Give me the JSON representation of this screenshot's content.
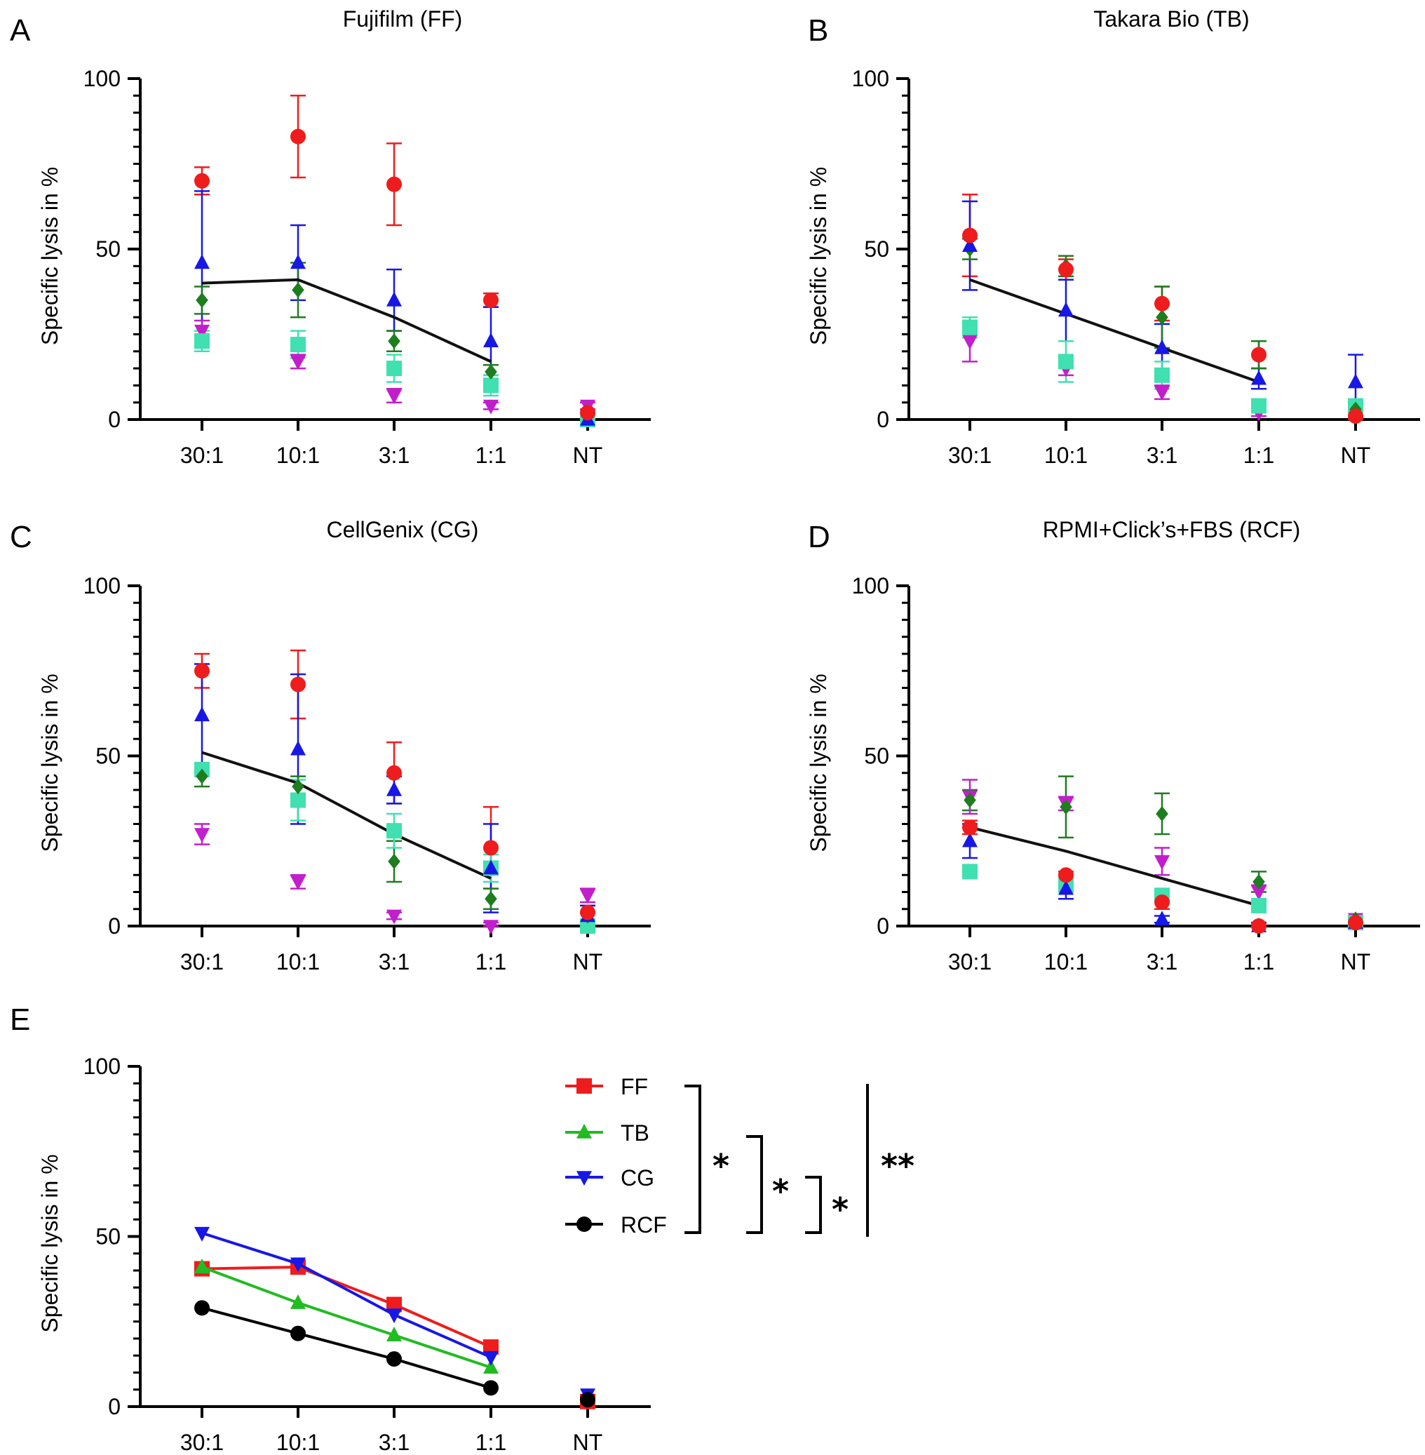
{
  "chart_data": [
    {
      "panel": "A",
      "type": "scatter",
      "title": "Fujifilm (FF)",
      "ylabel": "Specific lysis in %",
      "xlabel": "",
      "categories": [
        "30:1",
        "10:1",
        "3:1",
        "1:1",
        "NT"
      ],
      "ylim": [
        0,
        100
      ],
      "yticks": [
        "0",
        "50",
        "100"
      ],
      "series": [
        {
          "name": "red",
          "color": "#ee1c1c",
          "marker": "circle",
          "values": [
            70,
            83,
            69,
            35,
            2
          ],
          "errors": [
            4,
            12,
            12,
            2,
            1
          ]
        },
        {
          "name": "blue",
          "color": "#1717e6",
          "marker": "triangle-up",
          "values": [
            46,
            46,
            35,
            23,
            0
          ],
          "errors": [
            21,
            11,
            9,
            10,
            1
          ]
        },
        {
          "name": "green",
          "color": "#1e7d1e",
          "marker": "diamond",
          "values": [
            35,
            38,
            23,
            14,
            1
          ],
          "errors": [
            4,
            8,
            3,
            2,
            1
          ]
        },
        {
          "name": "teal",
          "color": "#40e0b0",
          "marker": "square",
          "values": [
            23,
            22,
            15,
            10,
            0
          ],
          "errors": [
            3,
            4,
            4,
            3,
            1
          ]
        },
        {
          "name": "magenta",
          "color": "#c21ecc",
          "marker": "triangle-down",
          "values": [
            26,
            17,
            7,
            4,
            4
          ],
          "errors": [
            3,
            2,
            2,
            1,
            1
          ]
        }
      ],
      "mean_line": [
        40,
        41,
        30,
        17,
        null
      ]
    },
    {
      "panel": "B",
      "type": "scatter",
      "title": "Takara Bio (TB)",
      "ylabel": "Specific lysis in %",
      "xlabel": "",
      "categories": [
        "30:1",
        "10:1",
        "3:1",
        "1:1",
        "NT"
      ],
      "ylim": [
        0,
        100
      ],
      "yticks": [
        "0",
        "50",
        "100"
      ],
      "series": [
        {
          "name": "red",
          "color": "#ee1c1c",
          "marker": "circle",
          "values": [
            54,
            44,
            34,
            19,
            1
          ],
          "errors": [
            12,
            3,
            5,
            4,
            1
          ]
        },
        {
          "name": "blue",
          "color": "#1717e6",
          "marker": "triangle-up",
          "values": [
            51,
            32,
            21,
            12,
            11
          ],
          "errors": [
            13,
            9,
            7,
            3,
            8
          ]
        },
        {
          "name": "green",
          "color": "#1e7d1e",
          "marker": "diamond",
          "values": [
            50,
            45,
            30,
            19,
            3
          ],
          "errors": [
            3,
            3,
            9,
            4,
            1
          ]
        },
        {
          "name": "teal",
          "color": "#40e0b0",
          "marker": "square",
          "values": [
            27,
            17,
            13,
            4,
            4
          ],
          "errors": [
            3,
            6,
            4,
            1,
            1
          ]
        },
        {
          "name": "magenta",
          "color": "#c21ecc",
          "marker": "triangle-down",
          "values": [
            23,
            15,
            8,
            2,
            3
          ],
          "errors": [
            6,
            2,
            2,
            1,
            1
          ]
        }
      ],
      "mean_line": [
        41,
        31,
        21,
        11,
        null
      ]
    },
    {
      "panel": "C",
      "type": "scatter",
      "title": "CellGenix (CG)",
      "ylabel": "Specific lysis in %",
      "xlabel": "",
      "categories": [
        "30:1",
        "10:1",
        "3:1",
        "1:1",
        "NT"
      ],
      "ylim": [
        0,
        100
      ],
      "yticks": [
        "0",
        "50",
        "100"
      ],
      "series": [
        {
          "name": "red",
          "color": "#ee1c1c",
          "marker": "circle",
          "values": [
            75,
            71,
            45,
            23,
            4
          ],
          "errors": [
            5,
            10,
            9,
            12,
            2
          ]
        },
        {
          "name": "blue",
          "color": "#1717e6",
          "marker": "triangle-up",
          "values": [
            62,
            52,
            40,
            17,
            3
          ],
          "errors": [
            15,
            22,
            4,
            13,
            3
          ]
        },
        {
          "name": "green",
          "color": "#1e7d1e",
          "marker": "diamond",
          "values": [
            44,
            41,
            19,
            8,
            3
          ],
          "errors": [
            3,
            3,
            6,
            3,
            1
          ]
        },
        {
          "name": "teal",
          "color": "#40e0b0",
          "marker": "square",
          "values": [
            46,
            37,
            28,
            17,
            0
          ],
          "errors": [
            2,
            6,
            5,
            4,
            1
          ]
        },
        {
          "name": "magenta",
          "color": "#c21ecc",
          "marker": "triangle-down",
          "values": [
            27,
            13,
            3,
            0,
            9
          ],
          "errors": [
            3,
            2,
            1,
            1,
            2
          ]
        }
      ],
      "mean_line": [
        51,
        42,
        27,
        14,
        null
      ]
    },
    {
      "panel": "D",
      "type": "scatter",
      "title": "RPMI+Click’s+FBS (RCF)",
      "ylabel": "Specific lysis in %",
      "xlabel": "",
      "categories": [
        "30:1",
        "10:1",
        "3:1",
        "1:1",
        "NT"
      ],
      "ylim": [
        0,
        100
      ],
      "yticks": [
        "0",
        "50",
        "100"
      ],
      "series": [
        {
          "name": "red",
          "color": "#ee1c1c",
          "marker": "circle",
          "values": [
            29,
            15,
            7,
            0,
            1
          ],
          "errors": [
            2,
            1,
            2,
            1,
            1
          ]
        },
        {
          "name": "blue",
          "color": "#1717e6",
          "marker": "triangle-up",
          "values": [
            25,
            11,
            2,
            0,
            1
          ],
          "errors": [
            5,
            3,
            1,
            1,
            1
          ]
        },
        {
          "name": "green",
          "color": "#1e7d1e",
          "marker": "diamond",
          "values": [
            37,
            35,
            33,
            13,
            2
          ],
          "errors": [
            3,
            9,
            6,
            3,
            1
          ]
        },
        {
          "name": "teal",
          "color": "#40e0b0",
          "marker": "square",
          "values": [
            16,
            12,
            9,
            6,
            1
          ],
          "errors": [
            1,
            2,
            2,
            1,
            1
          ]
        },
        {
          "name": "magenta",
          "color": "#c21ecc",
          "marker": "triangle-down",
          "values": [
            38,
            36,
            19,
            10,
            2
          ],
          "errors": [
            5,
            2,
            4,
            2,
            1
          ]
        }
      ],
      "mean_line": [
        29,
        22,
        14,
        6,
        null
      ]
    },
    {
      "panel": "E",
      "type": "line",
      "title": "",
      "ylabel": "Specific lysis in %",
      "xlabel": "",
      "categories": [
        "30:1",
        "10:1",
        "3:1",
        "1:1",
        "NT"
      ],
      "ylim": [
        0,
        100
      ],
      "yticks": [
        "0",
        "50",
        "100"
      ],
      "series": [
        {
          "name": "FF",
          "color": "#ee1c1c",
          "marker": "square",
          "values": [
            40.5,
            41,
            30,
            17.5,
            1.5
          ]
        },
        {
          "name": "TB",
          "color": "#22bb22",
          "marker": "triangle-up",
          "values": [
            41,
            30.5,
            21,
            11.5,
            3
          ]
        },
        {
          "name": "CG",
          "color": "#1717e6",
          "marker": "triangle-down",
          "values": [
            51,
            42,
            27,
            14.5,
            3.5
          ]
        },
        {
          "name": "RCF",
          "color": "#000000",
          "marker": "circle",
          "values": [
            29,
            21.5,
            14,
            5.5,
            2
          ]
        }
      ],
      "significance": [
        {
          "label": "*"
        },
        {
          "label": "*"
        },
        {
          "label": "*"
        },
        {
          "label": "**"
        }
      ]
    }
  ]
}
